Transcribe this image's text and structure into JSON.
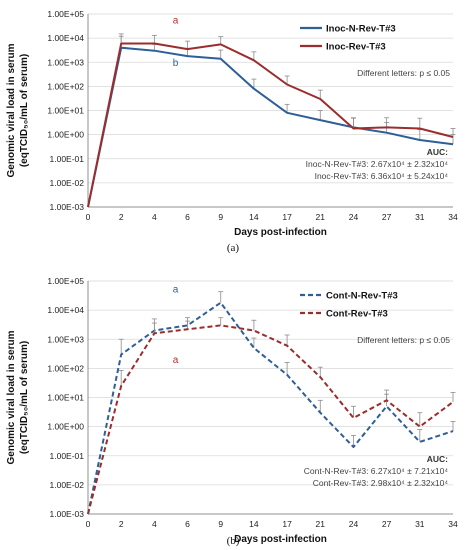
{
  "chart_data": [
    {
      "type": "line",
      "panel_label": "(a)",
      "ylabel_line1": "Genomic viral load in serum",
      "ylabel_line2": "(eqTCID₅₀/mL of serum)",
      "xlabel": "Days post-infection",
      "x": [
        0,
        2,
        4,
        6,
        9,
        14,
        17,
        21,
        24,
        27,
        31,
        34
      ],
      "x_ticks": [
        "0",
        "2",
        "4",
        "6",
        "9",
        "14",
        "17",
        "21",
        "24",
        "27",
        "31",
        "34"
      ],
      "y_ticks": [
        "1.00E-03",
        "1.00E-02",
        "1.00E-01",
        "1.00E+00",
        "1.00E+01",
        "1.00E+02",
        "1.00E+03",
        "1.00E+04",
        "1.00E+05"
      ],
      "yscale": "log",
      "ylim": [
        0.001,
        100000
      ],
      "grid": "horizontal",
      "legend_position": "top-right",
      "series": [
        {
          "name": "Inoc-N-Rev-T#3",
          "color": "#2e5f98",
          "dash": "solid",
          "values": [
            0.001,
            4000,
            3000,
            1800,
            1400,
            80,
            8,
            4,
            2,
            1.2,
            0.6,
            0.4
          ],
          "err": [
            0,
            8000,
            2500,
            2000,
            1800,
            120,
            10,
            6,
            3,
            2,
            1,
            0.6
          ]
        },
        {
          "name": "Inoc-Rev-T#3",
          "color": "#9b2d2d",
          "dash": "solid",
          "values": [
            0.001,
            6000,
            6000,
            3500,
            5500,
            1200,
            120,
            30,
            1.8,
            2,
            1.8,
            0.8
          ],
          "err": [
            0,
            9000,
            7000,
            4000,
            6000,
            1500,
            150,
            40,
            3,
            3,
            3,
            1
          ]
        }
      ],
      "letters": [
        {
          "text": "a",
          "x": 6,
          "y": 40000,
          "color": "#b03030"
        },
        {
          "text": "b",
          "x": 6,
          "y": 700,
          "color": "#2e5f98"
        }
      ],
      "significance_note": "Different letters: p ≤ 0.05",
      "auc_title": "AUC:",
      "auc_lines": [
        "Inoc-N-Rev-T#3: 2.67x10⁴ ± 2.32x10⁴",
        "Inoc-Rev-T#3: 6.36x10⁴ ± 5.24x10⁴"
      ]
    },
    {
      "type": "line",
      "panel_label": "(b)",
      "ylabel_line1": "Genomic viral load in serum",
      "ylabel_line2": "(eqTCID₅₀/mL of serum)",
      "xlabel": "Days post-infection",
      "x": [
        0,
        2,
        4,
        6,
        9,
        14,
        17,
        21,
        24,
        27,
        31,
        34
      ],
      "x_ticks": [
        "0",
        "2",
        "4",
        "6",
        "9",
        "14",
        "17",
        "21",
        "24",
        "27",
        "31",
        "34"
      ],
      "y_ticks": [
        "1.00E-03",
        "1.00E-02",
        "1.00E-01",
        "1.00E+00",
        "1.00E+01",
        "1.00E+02",
        "1.00E+03",
        "1.00E+04",
        "1.00E+05"
      ],
      "yscale": "log",
      "ylim": [
        0.001,
        100000
      ],
      "grid": "horizontal",
      "legend_position": "top-right",
      "series": [
        {
          "name": "Cont-N-Rev-T#3",
          "color": "#2e5f98",
          "dash": "dashed",
          "values": [
            0.001,
            300,
            2000,
            3000,
            18000,
            500,
            60,
            3,
            0.2,
            5,
            0.3,
            0.7
          ],
          "err": [
            0,
            700,
            3000,
            2500,
            25000,
            600,
            100,
            5,
            0.3,
            8,
            0.5,
            0.8
          ]
        },
        {
          "name": "Cont-Rev-T#3",
          "color": "#9b2d2d",
          "dash": "dashed",
          "values": [
            0.001,
            25,
            1600,
            2200,
            3000,
            2000,
            600,
            50,
            2,
            8,
            1,
            7
          ],
          "err": [
            0,
            60,
            2000,
            2000,
            2500,
            2500,
            800,
            60,
            3,
            10,
            2,
            8
          ]
        }
      ],
      "letters": [
        {
          "text": "a",
          "x": 6,
          "y": 40000,
          "color": "#2e5f98"
        },
        {
          "text": "a",
          "x": 6,
          "y": 150,
          "color": "#b03030"
        }
      ],
      "significance_note": "Different letters: p ≤ 0.05",
      "auc_title": "AUC:",
      "auc_lines": [
        "Cont-N-Rev-T#3: 6.27x10⁴ ± 7.21x10⁴",
        "Cont-Rev-T#3: 2.98x10⁴ ± 2.32x10⁴"
      ]
    }
  ]
}
